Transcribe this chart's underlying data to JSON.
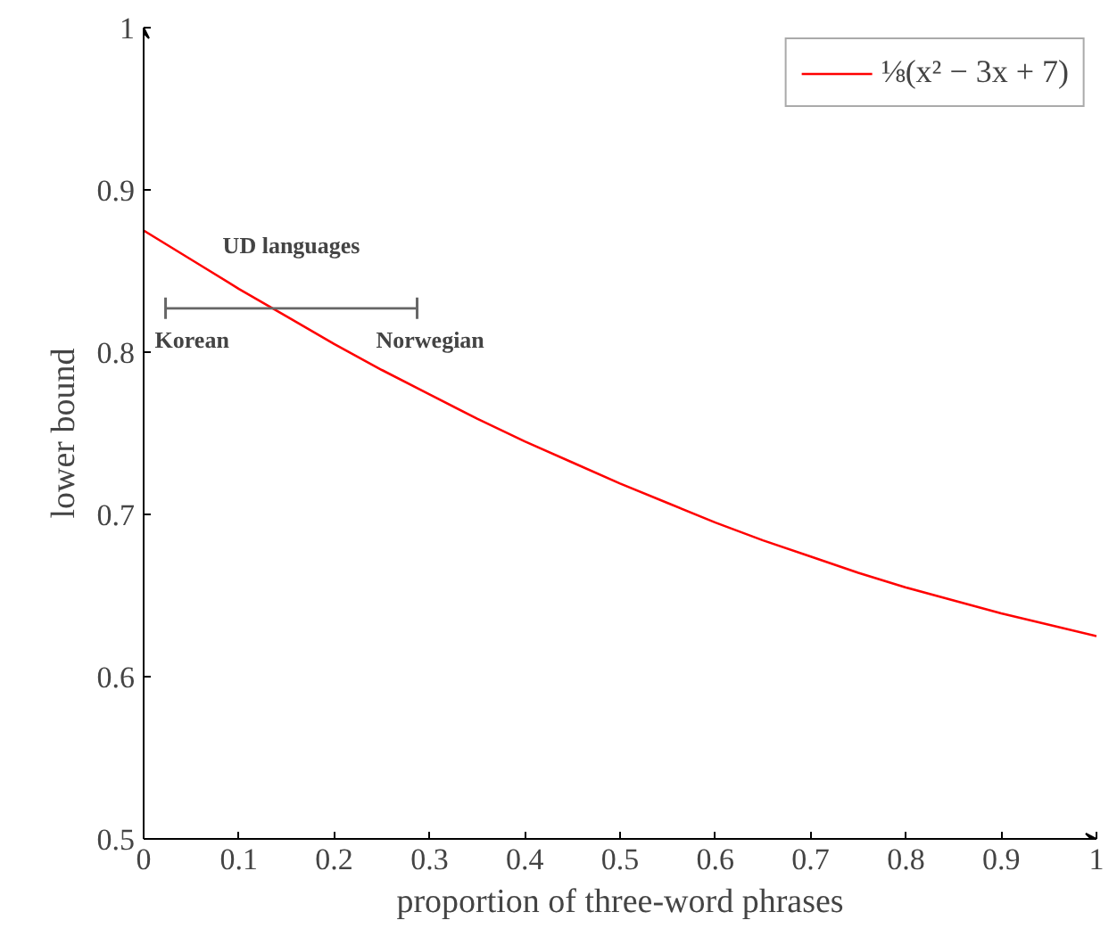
{
  "chart_data": {
    "type": "line",
    "xlabel": "proportion of three-word phrases",
    "ylabel": "lower bound",
    "xlim": [
      0,
      1
    ],
    "ylim": [
      0.5,
      1
    ],
    "xticks": [
      0,
      0.1,
      0.2,
      0.3,
      0.4,
      0.5,
      0.6,
      0.7,
      0.8,
      0.9,
      1
    ],
    "yticks": [
      0.5,
      0.6,
      0.7,
      0.8,
      0.9,
      1
    ],
    "grid": false,
    "legend": "top right",
    "marker": "none",
    "line_style": "solid",
    "series": [
      {
        "name": "⅛(x² − 3x + 7)",
        "color": "#ff0000",
        "x": [
          0,
          0.05,
          0.1,
          0.15,
          0.2,
          0.25,
          0.3,
          0.35,
          0.4,
          0.45,
          0.5,
          0.55,
          0.6,
          0.65,
          0.7,
          0.75,
          0.8,
          0.85,
          0.9,
          0.95,
          1
        ],
        "values": [
          0.875,
          0.857,
          0.839,
          0.822,
          0.805,
          0.789,
          0.774,
          0.759,
          0.745,
          0.732,
          0.719,
          0.707,
          0.695,
          0.684,
          0.674,
          0.664,
          0.655,
          0.647,
          0.639,
          0.632,
          0.625
        ]
      },
      {
        "type": "line",
        "color": "#666666",
        "marker": "none",
        "x": [
          0.023,
          0.287
        ],
        "values": [
          0.827,
          0.827
        ]
      }
    ],
    "annotations": [
      "UD languages",
      {
        "text": "Korean",
        "x": 0.023,
        "y": 0.827
      },
      {
        "text": "Norwegian",
        "x": 0.287,
        "y": 0.827
      }
    ]
  }
}
